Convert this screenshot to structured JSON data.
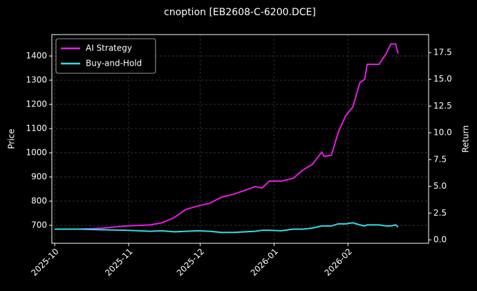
{
  "chart_data": {
    "type": "line",
    "title": "cnoption [EB2608-C-6200.DCE]",
    "ylabel": "Price",
    "y2label": "Return",
    "x": [
      0,
      10,
      20,
      30,
      40,
      45,
      50,
      55,
      60,
      65,
      70,
      75,
      80,
      84,
      87,
      90,
      95,
      100,
      104,
      108,
      112,
      113,
      116,
      119,
      122,
      125,
      128,
      130,
      131,
      136,
      139,
      141,
      143,
      144
    ],
    "xlim": [
      -1.2,
      156.8
    ],
    "xticks": [
      {
        "value": 0,
        "label": "2025-10"
      },
      {
        "value": 31,
        "label": "2025-11"
      },
      {
        "value": 61,
        "label": "2025-12"
      },
      {
        "value": 92,
        "label": "2026-01"
      },
      {
        "value": 123,
        "label": "2026-02"
      }
    ],
    "ylim": [
      625.7,
      1488.6
    ],
    "yticks": [
      700,
      800,
      900,
      1000,
      1100,
      1200,
      1300,
      1400
    ],
    "y2lim": [
      -0.32,
      19.18
    ],
    "y2ticks": [
      {
        "value": 0,
        "label": "0.0"
      },
      {
        "value": 2.5,
        "label": "2.5"
      },
      {
        "value": 5,
        "label": "5.0"
      },
      {
        "value": 7.5,
        "label": "7.5"
      },
      {
        "value": 10,
        "label": "10.0"
      },
      {
        "value": 12.5,
        "label": "12.5"
      },
      {
        "value": 15,
        "label": "15.0"
      },
      {
        "value": 17.5,
        "label": "17.5"
      }
    ],
    "grid": true,
    "legend": "upper left",
    "series": [
      {
        "name": "AI Strategy",
        "color": "#e81ce8",
        "axis": "y2",
        "values": [
          1.0,
          1.0,
          1.1,
          1.3,
          1.4,
          1.6,
          2.07,
          2.84,
          3.17,
          3.42,
          4.0,
          4.26,
          4.65,
          4.97,
          4.85,
          5.49,
          5.49,
          5.75,
          6.52,
          7.04,
          8.2,
          7.8,
          7.9,
          10.1,
          11.6,
          12.4,
          14.7,
          15.0,
          16.4,
          16.4,
          17.4,
          18.3,
          18.3,
          17.4
        ]
      },
      {
        "name": "Buy-and-Hold",
        "color": "#33dde8",
        "axis": "y2",
        "values": [
          1.0,
          1.0,
          0.95,
          0.9,
          0.8,
          0.85,
          0.75,
          0.8,
          0.85,
          0.8,
          0.7,
          0.7,
          0.75,
          0.8,
          0.9,
          0.9,
          0.85,
          1.0,
          1.0,
          1.1,
          1.3,
          1.3,
          1.3,
          1.5,
          1.5,
          1.6,
          1.4,
          1.3,
          1.4,
          1.4,
          1.3,
          1.3,
          1.4,
          1.2
        ]
      }
    ]
  }
}
